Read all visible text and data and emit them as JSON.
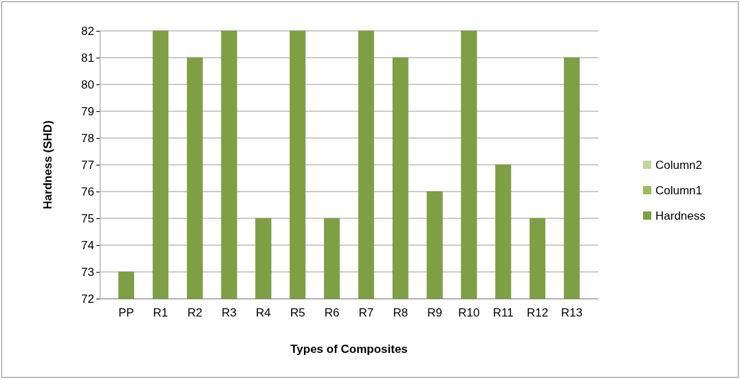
{
  "chart_data": {
    "type": "bar",
    "xlabel": "Types of Composites",
    "ylabel": "Hardness (SHD)",
    "categories": [
      "PP",
      "R1",
      "R2",
      "R3",
      "R4",
      "R5",
      "R6",
      "R7",
      "R8",
      "R9",
      "R10",
      "R11",
      "R12",
      "R13"
    ],
    "series": [
      {
        "name": "Column2",
        "color": "#c3d69b",
        "values": [
          null,
          null,
          null,
          null,
          null,
          null,
          null,
          null,
          null,
          null,
          null,
          null,
          null,
          null
        ]
      },
      {
        "name": "Column1",
        "color": "#9bbb59",
        "values": [
          null,
          null,
          null,
          null,
          null,
          null,
          null,
          null,
          null,
          null,
          null,
          null,
          null,
          null
        ]
      },
      {
        "name": "Hardness",
        "color": "#7f9f45",
        "values": [
          73,
          82,
          81,
          82,
          75,
          82,
          75,
          82,
          81,
          76,
          82,
          77,
          75,
          81
        ]
      }
    ],
    "ylim": [
      72,
      82
    ],
    "yticks": [
      72,
      73,
      74,
      75,
      76,
      77,
      78,
      79,
      80,
      81,
      82
    ],
    "grid": "y",
    "legend": "right"
  }
}
